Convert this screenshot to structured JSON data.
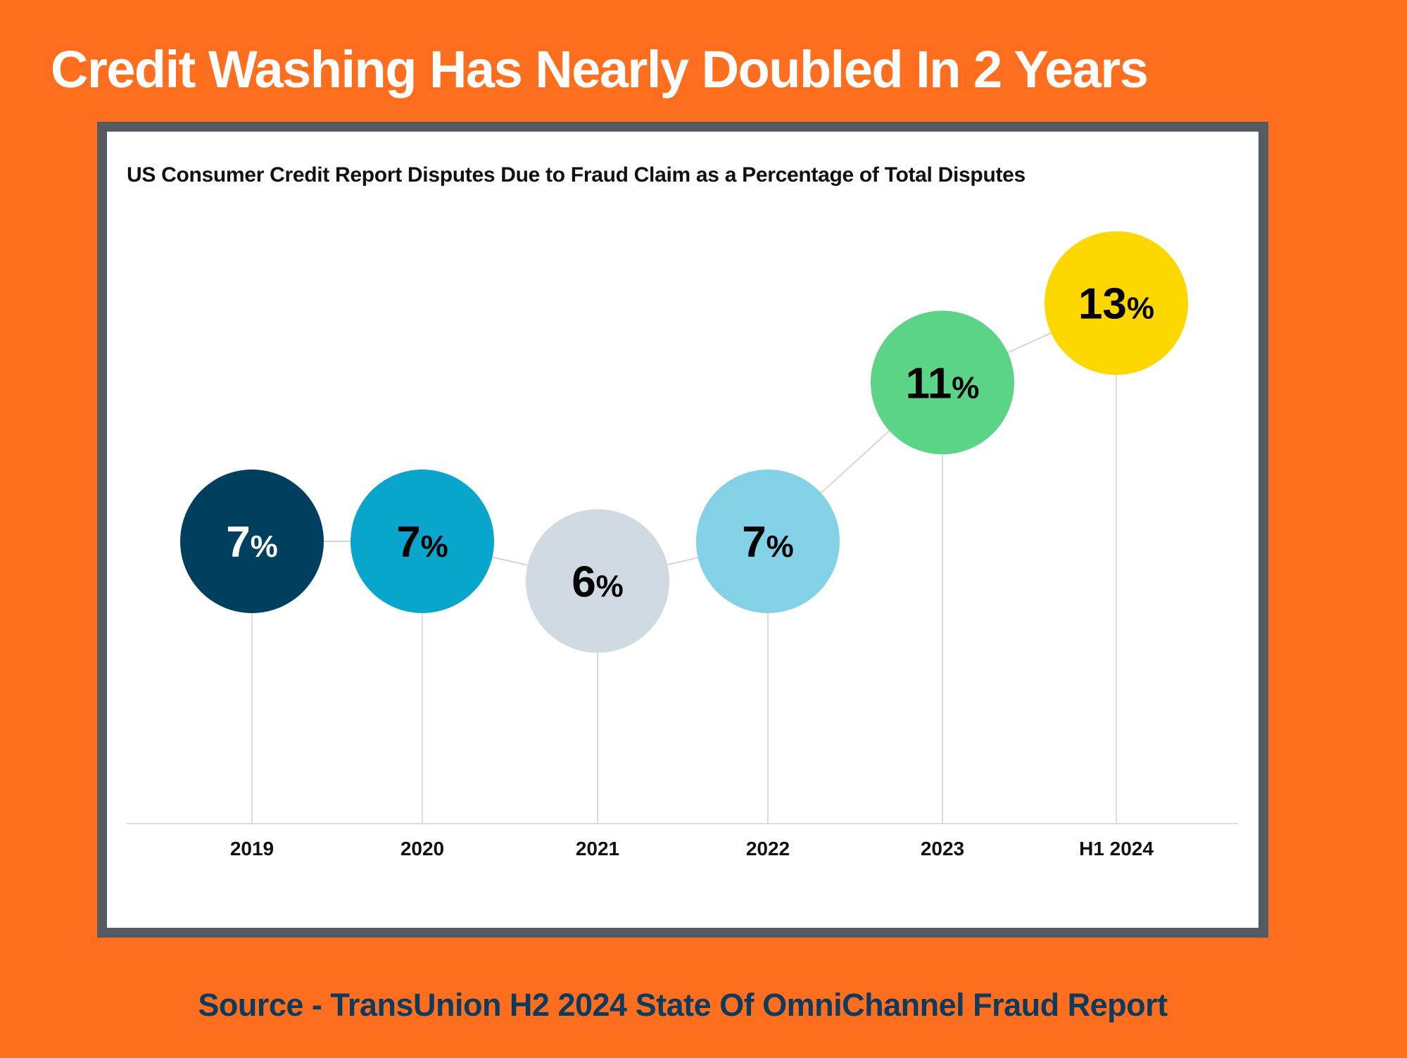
{
  "headline": "Credit Washing Has Nearly Doubled In 2 Years",
  "source": "Source - TransUnion H2 2024 State Of OmniChannel Fraud Report",
  "colors": {
    "background": "#fd6f1e",
    "frame": "#555a60",
    "source_text": "#0e3a5c"
  },
  "chart_data": {
    "type": "line",
    "title": "US Consumer Credit Report Disputes Due to Fraud Claim as a Percentage of Total Disputes",
    "xlabel": "",
    "ylabel": "",
    "unit": "%",
    "grid": false,
    "categories": [
      "2019",
      "2020",
      "2021",
      "2022",
      "2023",
      "H1 2024"
    ],
    "values": [
      7,
      7,
      6,
      7,
      11,
      13
    ],
    "labels": [
      "7",
      "7",
      "6",
      "7",
      "11",
      "13"
    ],
    "point_colors": [
      "#00405f",
      "#08a5cc",
      "#cfdbe1",
      "#82d1e6",
      "#5cd487",
      "#fcd800"
    ],
    "label_colors": [
      "#ffffff",
      "#000000",
      "#000000",
      "#000000",
      "#000000",
      "#000000"
    ]
  }
}
